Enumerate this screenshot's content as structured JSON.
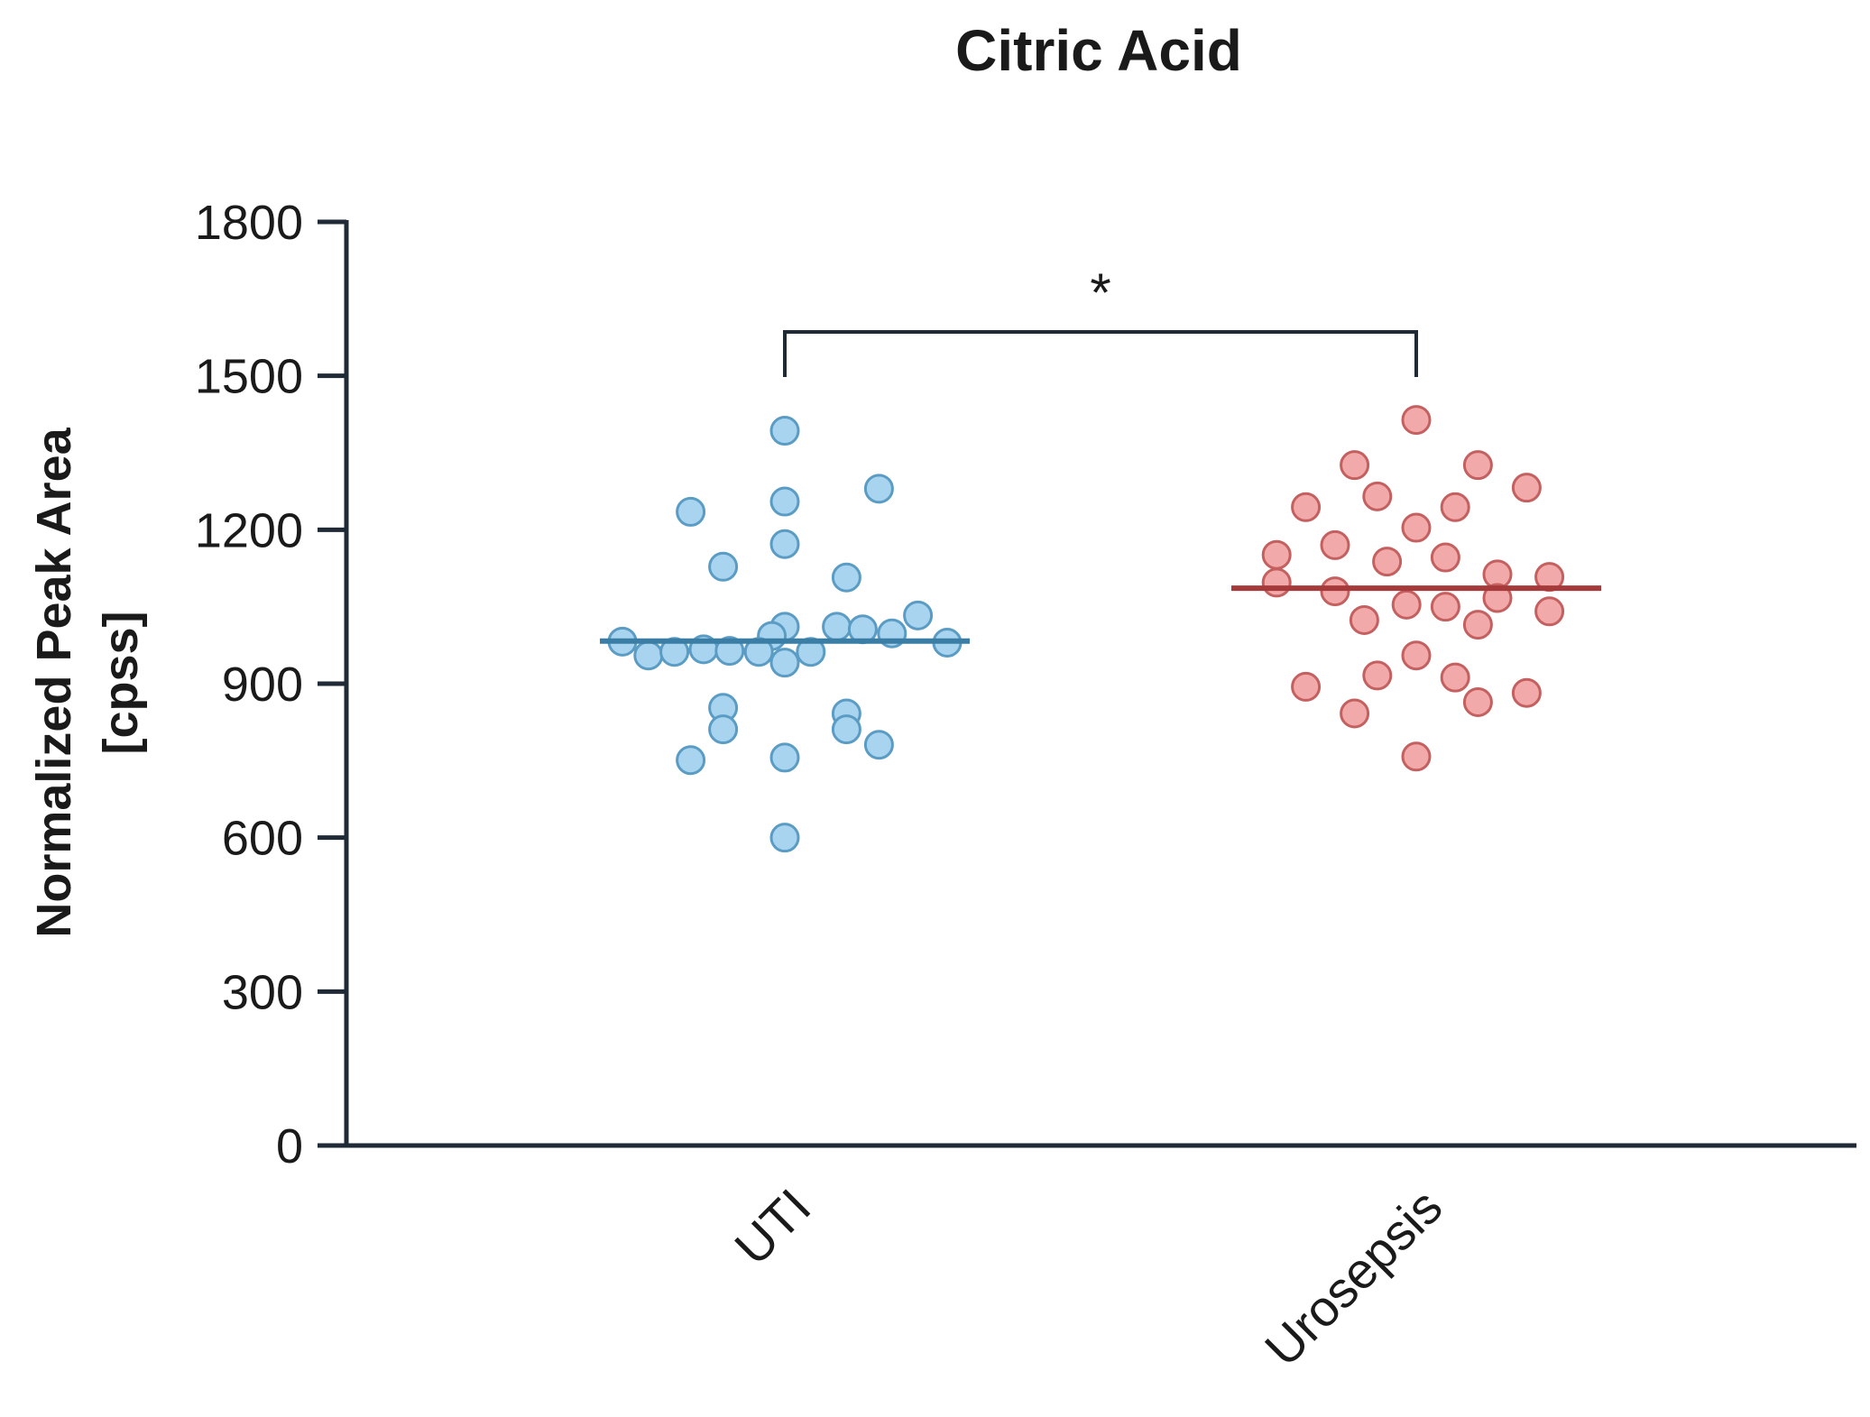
{
  "chart_data": {
    "type": "scatter",
    "title": "Citric Acid",
    "ylabel_line1": "Normalized Peak Area",
    "ylabel_line2": "[cpss]",
    "ylim": [
      0,
      1800
    ],
    "yticks": [
      "0",
      "300",
      "600",
      "900",
      "1200",
      "1500",
      "1800"
    ],
    "categories": [
      "UTI",
      "Urosepsis"
    ],
    "significance": "*",
    "legend": "none",
    "grid": false,
    "series": [
      {
        "category": "UTI",
        "fill": "#a9d4ef",
        "stroke": "#5a9cc4",
        "line_color": "#3a7ea6",
        "median": 983,
        "points": [
          {
            "offset": 0.0,
            "value": 1393
          },
          {
            "offset": 0.0,
            "value": 1255
          },
          {
            "offset": 0.0,
            "value": 1172
          },
          {
            "offset": 0.0,
            "value": 1011
          },
          {
            "offset": 0.0,
            "value": 941
          },
          {
            "offset": 0.0,
            "value": 756
          },
          {
            "offset": 0.0,
            "value": 600
          },
          {
            "offset": -0.29,
            "value": 1235
          },
          {
            "offset": 0.29,
            "value": 1280
          },
          {
            "offset": -0.19,
            "value": 1128
          },
          {
            "offset": 0.19,
            "value": 1107
          },
          {
            "offset": 0.41,
            "value": 1033
          },
          {
            "offset": -0.04,
            "value": 993
          },
          {
            "offset": 0.16,
            "value": 1011
          },
          {
            "offset": 0.24,
            "value": 1006
          },
          {
            "offset": 0.33,
            "value": 998
          },
          {
            "offset": -0.5,
            "value": 982
          },
          {
            "offset": 0.5,
            "value": 980
          },
          {
            "offset": -0.42,
            "value": 955
          },
          {
            "offset": -0.34,
            "value": 962
          },
          {
            "offset": -0.25,
            "value": 967
          },
          {
            "offset": -0.17,
            "value": 964
          },
          {
            "offset": -0.08,
            "value": 962
          },
          {
            "offset": 0.08,
            "value": 962
          },
          {
            "offset": -0.19,
            "value": 853
          },
          {
            "offset": 0.19,
            "value": 842
          },
          {
            "offset": -0.19,
            "value": 811
          },
          {
            "offset": 0.19,
            "value": 811
          },
          {
            "offset": 0.29,
            "value": 781
          },
          {
            "offset": -0.29,
            "value": 751
          }
        ]
      },
      {
        "category": "Urosepsis",
        "fill": "#f2a9a9",
        "stroke": "#c46060",
        "line_color": "#a63a3a",
        "median": 1086,
        "points": [
          {
            "offset": 0.0,
            "value": 1414
          },
          {
            "offset": -0.19,
            "value": 1326
          },
          {
            "offset": 0.19,
            "value": 1326
          },
          {
            "offset": -0.34,
            "value": 1244
          },
          {
            "offset": -0.12,
            "value": 1265
          },
          {
            "offset": 0.12,
            "value": 1244
          },
          {
            "offset": 0.34,
            "value": 1282
          },
          {
            "offset": 0.0,
            "value": 1204
          },
          {
            "offset": -0.43,
            "value": 1151
          },
          {
            "offset": -0.25,
            "value": 1170
          },
          {
            "offset": -0.09,
            "value": 1138
          },
          {
            "offset": 0.09,
            "value": 1146
          },
          {
            "offset": 0.25,
            "value": 1113
          },
          {
            "offset": 0.41,
            "value": 1108
          },
          {
            "offset": -0.43,
            "value": 1097
          },
          {
            "offset": -0.25,
            "value": 1080
          },
          {
            "offset": 0.25,
            "value": 1067
          },
          {
            "offset": -0.16,
            "value": 1024
          },
          {
            "offset": -0.03,
            "value": 1054
          },
          {
            "offset": 0.09,
            "value": 1050
          },
          {
            "offset": 0.19,
            "value": 1015
          },
          {
            "offset": 0.41,
            "value": 1041
          },
          {
            "offset": 0.0,
            "value": 955
          },
          {
            "offset": -0.34,
            "value": 894
          },
          {
            "offset": -0.12,
            "value": 916
          },
          {
            "offset": 0.12,
            "value": 912
          },
          {
            "offset": -0.19,
            "value": 842
          },
          {
            "offset": 0.19,
            "value": 864
          },
          {
            "offset": 0.34,
            "value": 882
          },
          {
            "offset": 0.0,
            "value": 758
          }
        ]
      }
    ]
  }
}
